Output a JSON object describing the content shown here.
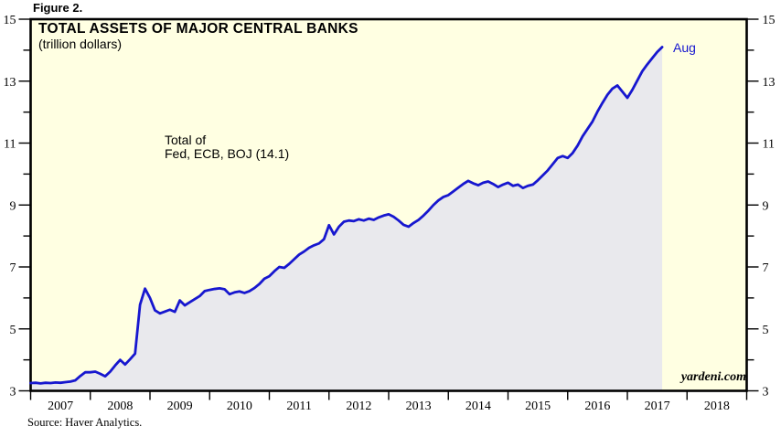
{
  "figure_label": "Figure 2.",
  "title": "TOTAL ASSETS OF MAJOR CENTRAL BANKS",
  "subtitle": "(trillion dollars)",
  "annotation": {
    "line1": "Total of",
    "line2": "Fed, ECB, BOJ (14.1)"
  },
  "end_label": "Aug",
  "watermark": "yardeni.com",
  "source": "Source: Haver Analytics.",
  "colors": {
    "plot_bg": "#ffffe2",
    "area_fill": "#e9e9ed",
    "line": "#1717cf",
    "end_label": "#1717cf",
    "axis": "#000000"
  },
  "chart_data": {
    "type": "area",
    "title": "TOTAL ASSETS OF MAJOR CENTRAL BANKS",
    "units": "trillion dollars",
    "legend_position": "none",
    "grid": false,
    "x_axis": {
      "min": 2007,
      "max": 2019,
      "tick_years": [
        2007,
        2008,
        2009,
        2010,
        2011,
        2012,
        2013,
        2014,
        2015,
        2016,
        2017,
        2018,
        2019
      ],
      "labels": [
        "2007",
        "2008",
        "2009",
        "2010",
        "2011",
        "2012",
        "2013",
        "2014",
        "2015",
        "2016",
        "2017",
        "2018"
      ]
    },
    "y_axis": {
      "min": 3,
      "max": 15,
      "tick_step": 1,
      "labeled_ticks": [
        3,
        5,
        7,
        9,
        11,
        13,
        15
      ],
      "sides": [
        "left",
        "right"
      ]
    },
    "series": [
      {
        "name": "Total of Fed, ECB, BOJ",
        "start": "2007-01",
        "end": "2017-08",
        "end_value": 14.1,
        "end_point_label": "Aug",
        "values": [
          3.25,
          3.26,
          3.24,
          3.26,
          3.25,
          3.27,
          3.26,
          3.28,
          3.3,
          3.34,
          3.48,
          3.6,
          3.6,
          3.62,
          3.55,
          3.47,
          3.62,
          3.82,
          4.0,
          3.85,
          4.02,
          4.2,
          5.78,
          6.3,
          6.0,
          5.6,
          5.5,
          5.56,
          5.62,
          5.55,
          5.92,
          5.76,
          5.86,
          5.96,
          6.06,
          6.22,
          6.26,
          6.29,
          6.31,
          6.28,
          6.12,
          6.18,
          6.21,
          6.16,
          6.22,
          6.32,
          6.45,
          6.62,
          6.7,
          6.86,
          7.0,
          6.97,
          7.1,
          7.25,
          7.4,
          7.5,
          7.62,
          7.7,
          7.76,
          7.9,
          8.35,
          8.05,
          8.3,
          8.46,
          8.5,
          8.48,
          8.54,
          8.5,
          8.56,
          8.52,
          8.6,
          8.66,
          8.7,
          8.62,
          8.5,
          8.36,
          8.3,
          8.42,
          8.52,
          8.66,
          8.82,
          9.0,
          9.15,
          9.26,
          9.32,
          9.44,
          9.56,
          9.68,
          9.78,
          9.7,
          9.64,
          9.72,
          9.76,
          9.68,
          9.58,
          9.66,
          9.72,
          9.62,
          9.66,
          9.55,
          9.62,
          9.66,
          9.8,
          9.96,
          10.12,
          10.32,
          10.52,
          10.58,
          10.52,
          10.68,
          10.92,
          11.22,
          11.46,
          11.7,
          12.02,
          12.3,
          12.56,
          12.76,
          12.86,
          12.66,
          12.46,
          12.72,
          13.02,
          13.32,
          13.54,
          13.74,
          13.94,
          14.1
        ]
      }
    ]
  }
}
